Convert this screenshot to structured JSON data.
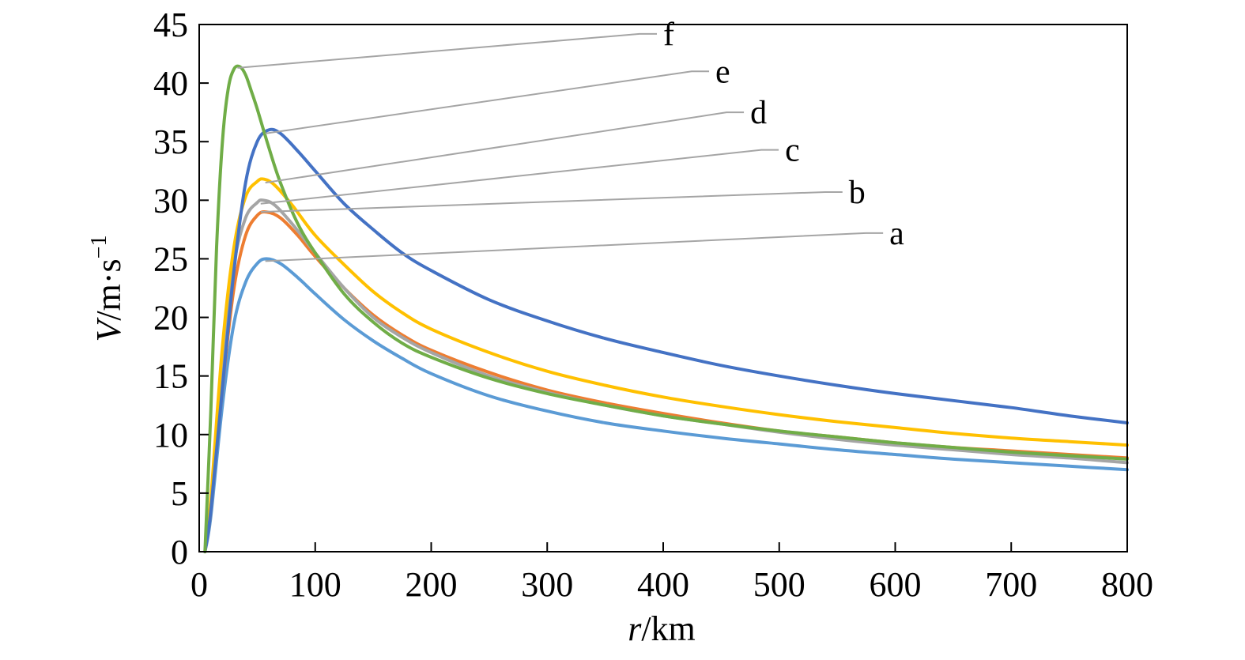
{
  "chart_data": {
    "type": "line",
    "xlabel": {
      "var": "r",
      "unit": "/km"
    },
    "ylabel": {
      "var": "V",
      "unit": "/m·s",
      "sup": "−1"
    },
    "xlim": [
      0,
      800
    ],
    "ylim": [
      0,
      45
    ],
    "xticks": [
      0,
      100,
      200,
      300,
      400,
      500,
      600,
      700,
      800
    ],
    "yticks": [
      0,
      5,
      10,
      15,
      20,
      25,
      30,
      35,
      40,
      45
    ],
    "xtick_labels": [
      "0",
      "100",
      "200",
      "300",
      "400",
      "500",
      "600",
      "700",
      "800"
    ],
    "ytick_labels": [
      "0",
      "5",
      "10",
      "15",
      "20",
      "25",
      "30",
      "35",
      "40",
      "45"
    ],
    "grid": false,
    "legend": "inline labels with leader lines",
    "series": [
      {
        "name": "a",
        "color": "#5B9BD5",
        "x": [
          5,
          10,
          20,
          30,
          40,
          50,
          58,
          70,
          85,
          100,
          125,
          150,
          175,
          200,
          250,
          300,
          350,
          400,
          450,
          500,
          550,
          600,
          650,
          700,
          750,
          800
        ],
        "y": [
          0,
          3,
          12.5,
          19.5,
          23,
          24.6,
          25,
          24.6,
          23.4,
          22,
          19.8,
          18,
          16.5,
          15.2,
          13.3,
          12,
          11,
          10.3,
          9.7,
          9.2,
          8.7,
          8.3,
          7.9,
          7.6,
          7.3,
          7
        ]
      },
      {
        "name": "b",
        "color": "#ED7D31",
        "x": [
          5,
          10,
          20,
          30,
          40,
          50,
          58,
          70,
          85,
          100,
          125,
          150,
          175,
          200,
          250,
          300,
          350,
          400,
          450,
          500,
          550,
          600,
          650,
          700,
          750,
          800
        ],
        "y": [
          0,
          3.5,
          14,
          22.5,
          27,
          28.7,
          29,
          28.5,
          27,
          25.2,
          22.5,
          20.2,
          18.5,
          17.2,
          15.3,
          13.8,
          12.7,
          11.8,
          11,
          10.3,
          9.8,
          9.3,
          8.9,
          8.6,
          8.3,
          8
        ]
      },
      {
        "name": "c",
        "color": "#A5A5A5",
        "x": [
          5,
          10,
          20,
          30,
          40,
          50,
          55,
          65,
          80,
          100,
          125,
          150,
          175,
          200,
          250,
          300,
          350,
          400,
          450,
          500,
          550,
          600,
          650,
          700,
          750,
          800
        ],
        "y": [
          0,
          4,
          16,
          24.5,
          28.5,
          29.8,
          30,
          29.6,
          28,
          25.5,
          22.5,
          20,
          18.3,
          17,
          15,
          13.6,
          12.5,
          11.6,
          10.9,
          10.2,
          9.6,
          9.1,
          8.7,
          8.3,
          8,
          7.6
        ]
      },
      {
        "name": "d",
        "color": "#FFC000",
        "x": [
          5,
          10,
          20,
          30,
          40,
          50,
          56,
          65,
          80,
          100,
          125,
          150,
          175,
          200,
          250,
          300,
          350,
          400,
          450,
          500,
          550,
          600,
          650,
          700,
          750,
          800
        ],
        "y": [
          0,
          4.5,
          17.5,
          26,
          30.3,
          31.6,
          31.8,
          31.3,
          29.6,
          27,
          24.5,
          22.2,
          20.4,
          19,
          17,
          15.4,
          14.2,
          13.2,
          12.4,
          11.7,
          11.1,
          10.6,
          10.1,
          9.7,
          9.4,
          9.1
        ]
      },
      {
        "name": "e",
        "color": "#4472C4",
        "x": [
          5,
          10,
          20,
          30,
          40,
          50,
          60,
          70,
          85,
          100,
          125,
          150,
          175,
          200,
          250,
          300,
          350,
          400,
          450,
          500,
          550,
          600,
          650,
          700,
          750,
          800
        ],
        "y": [
          0,
          3.5,
          14,
          24,
          31.5,
          35,
          36,
          35.7,
          34.2,
          32.5,
          29.7,
          27.5,
          25.5,
          24,
          21.5,
          19.7,
          18.2,
          17,
          15.9,
          15,
          14.2,
          13.5,
          12.9,
          12.3,
          11.6,
          11
        ]
      },
      {
        "name": "f",
        "color": "#70AD47",
        "x": [
          5,
          10,
          15,
          20,
          25,
          30,
          35,
          40,
          45,
          50,
          60,
          70,
          85,
          100,
          125,
          150,
          175,
          200,
          250,
          300,
          350,
          400,
          450,
          500,
          550,
          600,
          650,
          700,
          750,
          800
        ],
        "y": [
          0,
          12,
          26,
          35,
          39.5,
          41.2,
          41.4,
          40.7,
          39.3,
          37.8,
          34.5,
          31.5,
          28,
          25.5,
          22,
          19.6,
          17.8,
          16.6,
          14.8,
          13.5,
          12.5,
          11.6,
          10.9,
          10.3,
          9.8,
          9.3,
          8.9,
          8.5,
          8.2,
          7.9
        ]
      }
    ],
    "annotations": [
      {
        "label": "f",
        "target": [
          33,
          41.3
        ],
        "text_pos": [
          400,
          44.2
        ]
      },
      {
        "label": "e",
        "target": [
          57,
          35.7
        ],
        "text_pos": [
          445,
          41
        ]
      },
      {
        "label": "d",
        "target": [
          57,
          31.5
        ],
        "text_pos": [
          475,
          37.5
        ]
      },
      {
        "label": "c",
        "target": [
          53,
          29.7
        ],
        "text_pos": [
          505,
          34.3
        ]
      },
      {
        "label": "b",
        "target": [
          53,
          29
        ],
        "text_pos": [
          560,
          30.7
        ]
      },
      {
        "label": "a",
        "target": [
          57,
          24.8
        ],
        "text_pos": [
          595,
          27.2
        ]
      }
    ]
  }
}
